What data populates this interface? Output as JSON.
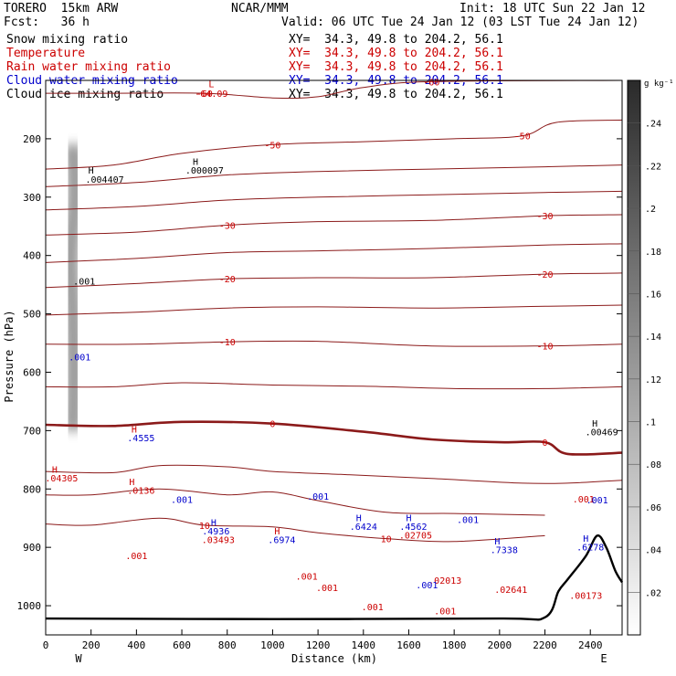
{
  "header": {
    "model": "TORERO  15km ARW",
    "center": "NCAR/MMM",
    "init": "Init: 18 UTC Sun 22 Jan 12",
    "fcst": "Fcst:   36 h",
    "valid": "Valid: 06 UTC Tue 24 Jan 12 (03 LST Tue 24 Jan 12)"
  },
  "fields": [
    {
      "name": "Snow mixing ratio",
      "xy": "XY=  34.3, 49.8 to 204.2, 56.1",
      "color": "#000000"
    },
    {
      "name": "Temperature",
      "xy": "XY=  34.3, 49.8 to 204.2, 56.1",
      "color": "#cc0000"
    },
    {
      "name": "Rain water mixing ratio",
      "xy": "XY=  34.3, 49.8 to 204.2, 56.1",
      "color": "#cc0000"
    },
    {
      "name": "Cloud water mixing ratio",
      "xy": "XY=  34.3, 49.8 to 204.2, 56.1",
      "color": "#0000cc"
    },
    {
      "name": "Cloud ice mixing ratio",
      "xy": "XY=  34.3, 49.8 to 204.2, 56.1",
      "color": "#000000"
    }
  ],
  "chart_data": {
    "type": "cross-section",
    "xlabel": "Distance (km)",
    "ylabel": "Pressure (hPa)",
    "xlim": [
      0,
      2540
    ],
    "ylim": [
      1050,
      100
    ],
    "x_ticks": [
      "0",
      "200",
      "400",
      "600",
      "800",
      "1000",
      "1200",
      "1400",
      "1600",
      "1800",
      "2000",
      "2200",
      "2400"
    ],
    "x_tick_values": [
      0,
      200,
      400,
      600,
      800,
      1000,
      1200,
      1400,
      1600,
      1800,
      2000,
      2200,
      2400
    ],
    "y_ticks": [
      "200",
      "300",
      "400",
      "500",
      "600",
      "700",
      "800",
      "900",
      "1000"
    ],
    "y_tick_values": [
      200,
      300,
      400,
      500,
      600,
      700,
      800,
      900,
      1000
    ],
    "end_labels": {
      "west": "W",
      "east": "E"
    },
    "colorbar": {
      "unit": "g kg⁻¹",
      "ticks": [
        ".02",
        ".04",
        ".06",
        ".08",
        ".1",
        ".12",
        ".14",
        ".16",
        ".18",
        ".2",
        ".22",
        ".24"
      ],
      "tick_values": [
        0.02,
        0.04,
        0.06,
        0.08,
        0.1,
        0.12,
        0.14,
        0.16,
        0.18,
        0.2,
        0.22,
        0.24
      ],
      "max": 0.26
    },
    "isotherms": [
      {
        "label": "-60",
        "points": [
          [
            0,
            122
          ],
          [
            300,
            122
          ],
          [
            700,
            122
          ],
          [
            1000,
            130
          ],
          [
            1200,
            128
          ],
          [
            1400,
            112
          ],
          [
            1700,
            102
          ],
          [
            2540,
            100
          ]
        ]
      },
      {
        "label": "-50",
        "points": [
          [
            0,
            252
          ],
          [
            300,
            245
          ],
          [
            600,
            225
          ],
          [
            1000,
            210
          ],
          [
            1400,
            205
          ],
          [
            1800,
            200
          ],
          [
            2100,
            195
          ],
          [
            2250,
            172
          ],
          [
            2540,
            168
          ]
        ]
      },
      {
        "label": "",
        "points": [
          [
            0,
            282
          ],
          [
            400,
            275
          ],
          [
            800,
            262
          ],
          [
            1200,
            256
          ],
          [
            1700,
            252
          ],
          [
            2200,
            248
          ],
          [
            2540,
            245
          ]
        ]
      },
      {
        "label": "",
        "points": [
          [
            0,
            322
          ],
          [
            400,
            316
          ],
          [
            800,
            305
          ],
          [
            1200,
            300
          ],
          [
            1700,
            296
          ],
          [
            2200,
            292
          ],
          [
            2540,
            290
          ]
        ]
      },
      {
        "label": "-30",
        "points": [
          [
            0,
            365
          ],
          [
            400,
            360
          ],
          [
            800,
            348
          ],
          [
            1200,
            342
          ],
          [
            1700,
            340
          ],
          [
            2200,
            332
          ],
          [
            2540,
            330
          ]
        ]
      },
      {
        "label": "",
        "points": [
          [
            0,
            412
          ],
          [
            400,
            405
          ],
          [
            800,
            395
          ],
          [
            1200,
            392
          ],
          [
            1700,
            388
          ],
          [
            2200,
            382
          ],
          [
            2540,
            380
          ]
        ]
      },
      {
        "label": "-20",
        "points": [
          [
            0,
            455
          ],
          [
            400,
            448
          ],
          [
            800,
            440
          ],
          [
            1200,
            438
          ],
          [
            1700,
            438
          ],
          [
            2200,
            432
          ],
          [
            2540,
            430
          ]
        ]
      },
      {
        "label": "",
        "points": [
          [
            0,
            502
          ],
          [
            400,
            497
          ],
          [
            800,
            490
          ],
          [
            1200,
            488
          ],
          [
            1700,
            490
          ],
          [
            2200,
            487
          ],
          [
            2540,
            485
          ]
        ]
      },
      {
        "label": "-10",
        "points": [
          [
            0,
            552
          ],
          [
            400,
            552
          ],
          [
            800,
            548
          ],
          [
            1200,
            547
          ],
          [
            1700,
            555
          ],
          [
            2200,
            555
          ],
          [
            2540,
            552
          ]
        ]
      },
      {
        "label": "",
        "points": [
          [
            0,
            625
          ],
          [
            300,
            625
          ],
          [
            600,
            618
          ],
          [
            1000,
            622
          ],
          [
            1400,
            624
          ],
          [
            1800,
            628
          ],
          [
            2200,
            628
          ],
          [
            2540,
            625
          ]
        ]
      },
      {
        "label": "0",
        "bold": true,
        "points": [
          [
            0,
            690
          ],
          [
            300,
            692
          ],
          [
            600,
            685
          ],
          [
            1000,
            688
          ],
          [
            1400,
            702
          ],
          [
            1700,
            715
          ],
          [
            2000,
            720
          ],
          [
            2200,
            720
          ],
          [
            2300,
            740
          ],
          [
            2540,
            738
          ]
        ]
      },
      {
        "label": "",
        "points": [
          [
            0,
            770
          ],
          [
            300,
            772
          ],
          [
            500,
            760
          ],
          [
            800,
            762
          ],
          [
            1000,
            770
          ],
          [
            1300,
            775
          ],
          [
            1700,
            782
          ],
          [
            2100,
            790
          ],
          [
            2300,
            790
          ],
          [
            2540,
            785
          ]
        ]
      },
      {
        "label": "",
        "points": [
          [
            0,
            810
          ],
          [
            200,
            810
          ],
          [
            500,
            800
          ],
          [
            800,
            810
          ],
          [
            1000,
            805
          ],
          [
            1200,
            820
          ],
          [
            1500,
            840
          ],
          [
            1800,
            842
          ],
          [
            2200,
            845
          ]
        ]
      },
      {
        "label": "10",
        "points": [
          [
            0,
            860
          ],
          [
            200,
            862
          ],
          [
            500,
            850
          ],
          [
            700,
            862
          ],
          [
            1000,
            865
          ],
          [
            1200,
            875
          ],
          [
            1500,
            885
          ],
          [
            1800,
            890
          ],
          [
            2200,
            880
          ]
        ]
      }
    ],
    "surface_pressure": [
      [
        0,
        1022
      ],
      [
        1000,
        1023
      ],
      [
        2000,
        1022
      ],
      [
        2200,
        1020
      ],
      [
        2260,
        975
      ],
      [
        2300,
        955
      ],
      [
        2380,
        915
      ],
      [
        2430,
        880
      ],
      [
        2470,
        900
      ],
      [
        2510,
        940
      ],
      [
        2540,
        960
      ]
    ],
    "snow_column": [
      [
        120,
        210
      ],
      [
        130,
        300
      ],
      [
        110,
        400
      ],
      [
        120,
        500
      ],
      [
        125,
        600
      ],
      [
        120,
        700
      ]
    ],
    "snow_peak": 0.12,
    "labels": [
      {
        "text": "L",
        "x": 730,
        "y": 112,
        "color": "#cc0000"
      },
      {
        "text": "-64.09",
        "x": 730,
        "y": 128,
        "color": "#cc0000"
      },
      {
        "text": "H",
        "x": 200,
        "y": 260,
        "color": "#000000"
      },
      {
        "text": ".004407",
        "x": 260,
        "y": 275,
        "color": "#000000"
      },
      {
        "text": "H",
        "x": 660,
        "y": 245,
        "color": "#000000"
      },
      {
        "text": ".000097",
        "x": 700,
        "y": 260,
        "color": "#000000"
      },
      {
        "text": ".001",
        "x": 170,
        "y": 450,
        "color": "#000000"
      },
      {
        "text": ".001",
        "x": 150,
        "y": 580,
        "color": "#0000cc"
      },
      {
        "text": "H",
        "x": 390,
        "y": 703,
        "color": "#cc0000"
      },
      {
        "text": ".4555",
        "x": 420,
        "y": 718,
        "color": "#0000cc"
      },
      {
        "text": "H",
        "x": 40,
        "y": 772,
        "color": "#cc0000"
      },
      {
        "text": ".04305",
        "x": 70,
        "y": 787,
        "color": "#cc0000"
      },
      {
        "text": "H",
        "x": 380,
        "y": 793,
        "color": "#cc0000"
      },
      {
        "text": ".0136",
        "x": 420,
        "y": 808,
        "color": "#cc0000"
      },
      {
        "text": ".001",
        "x": 600,
        "y": 824,
        "color": "#0000cc"
      },
      {
        "text": "H",
        "x": 740,
        "y": 863,
        "color": "#0000cc"
      },
      {
        "text": ".4936",
        "x": 750,
        "y": 878,
        "color": "#0000cc"
      },
      {
        "text": ".03493",
        "x": 760,
        "y": 893,
        "color": "#cc0000"
      },
      {
        "text": "H",
        "x": 1020,
        "y": 878,
        "color": "#cc0000"
      },
      {
        "text": ".6974",
        "x": 1040,
        "y": 893,
        "color": "#0000cc"
      },
      {
        "text": ".001",
        "x": 1200,
        "y": 818,
        "color": "#0000cc"
      },
      {
        "text": "H",
        "x": 1380,
        "y": 855,
        "color": "#0000cc"
      },
      {
        "text": ".6424",
        "x": 1400,
        "y": 870,
        "color": "#0000cc"
      },
      {
        "text": "H",
        "x": 1600,
        "y": 855,
        "color": "#0000cc"
      },
      {
        "text": ".4562",
        "x": 1620,
        "y": 870,
        "color": "#0000cc"
      },
      {
        "text": ".02705",
        "x": 1630,
        "y": 885,
        "color": "#cc0000"
      },
      {
        "text": ".001",
        "x": 1860,
        "y": 858,
        "color": "#0000cc"
      },
      {
        "text": "H",
        "x": 1990,
        "y": 895,
        "color": "#0000cc"
      },
      {
        "text": ".7338",
        "x": 2020,
        "y": 910,
        "color": "#0000cc"
      },
      {
        "text": ".02013",
        "x": 1760,
        "y": 962,
        "color": "#cc0000"
      },
      {
        "text": ".001",
        "x": 1680,
        "y": 970,
        "color": "#0000cc"
      },
      {
        "text": ".02641",
        "x": 2050,
        "y": 978,
        "color": "#cc0000"
      },
      {
        "text": "H",
        "x": 2380,
        "y": 890,
        "color": "#0000cc"
      },
      {
        "text": ".6278",
        "x": 2400,
        "y": 905,
        "color": "#0000cc"
      },
      {
        "text": ".00173",
        "x": 2380,
        "y": 988,
        "color": "#cc0000"
      },
      {
        "text": ".001",
        "x": 2370,
        "y": 823,
        "color": "#cc0000"
      },
      {
        "text": ".001",
        "x": 2430,
        "y": 825,
        "color": "#0000cc"
      },
      {
        "text": "H",
        "x": 2420,
        "y": 693,
        "color": "#000000"
      },
      {
        "text": ".00469",
        "x": 2450,
        "y": 708,
        "color": "#000000"
      },
      {
        "text": ".001",
        "x": 400,
        "y": 920,
        "color": "#cc0000"
      },
      {
        "text": ".001",
        "x": 1150,
        "y": 955,
        "color": "#cc0000"
      },
      {
        "text": ".001",
        "x": 1240,
        "y": 975,
        "color": "#cc0000"
      },
      {
        "text": ".001",
        "x": 1440,
        "y": 1008,
        "color": "#cc0000"
      },
      {
        "text": ".001",
        "x": 1760,
        "y": 1015,
        "color": "#cc0000"
      }
    ]
  }
}
